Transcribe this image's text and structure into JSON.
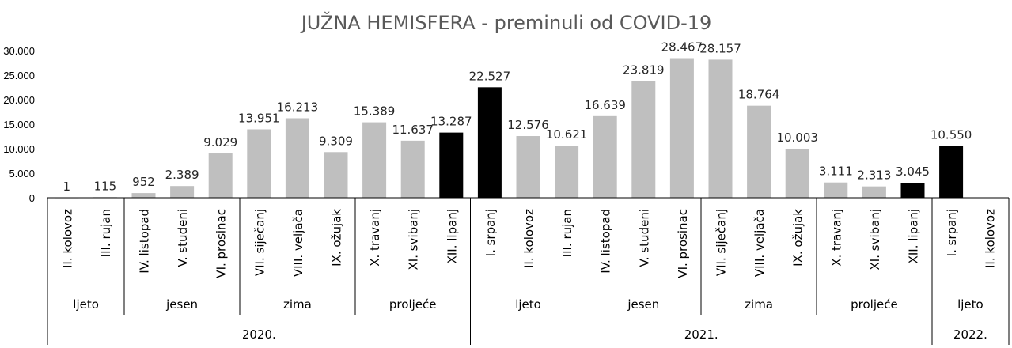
{
  "chart_data": {
    "type": "bar",
    "title": "JUŽNA HEMISFERA - preminuli od COVID-19",
    "ylim": [
      0,
      30000
    ],
    "y_ticks": [
      {
        "value": 0,
        "label": "0"
      },
      {
        "value": 5000,
        "label": "5.000"
      },
      {
        "value": 10000,
        "label": "10.000"
      },
      {
        "value": 15000,
        "label": "15.000"
      },
      {
        "value": 20000,
        "label": "20.000"
      },
      {
        "value": 25000,
        "label": "25.000"
      },
      {
        "value": 30000,
        "label": "30.000"
      }
    ],
    "grid": false,
    "categories": [
      "II. kolovoz",
      "III. rujan",
      "IV. listopad",
      "V. studeni",
      "VI. prosinac",
      "VII. siječanj",
      "VIII. veljača",
      "IX. ožujak",
      "X. travanj",
      "XI. svibanj",
      "XII. lipanj",
      "I. srpanj",
      "II. kolovoz",
      "III. rujan",
      "IV. listopad",
      "V. studeni",
      "VI. prosinac",
      "VII. siječanj",
      "VIII. veljača",
      "IX. ožujak",
      "X. travanj",
      "XI. svibanj",
      "XII. lipanj",
      "I. srpanj",
      "II. kolovoz"
    ],
    "values": [
      1,
      115,
      952,
      2389,
      9029,
      13951,
      16213,
      9309,
      15389,
      11637,
      13287,
      22527,
      12576,
      10621,
      16639,
      23819,
      28467,
      28157,
      18764,
      10003,
      3111,
      2313,
      3045,
      10550,
      null
    ],
    "data_labels": [
      "1",
      "115",
      "952",
      "2.389",
      "9.029",
      "13.951",
      "16.213",
      "9.309",
      "15.389",
      "11.637",
      "13.287",
      "22.527",
      "12.576",
      "10.621",
      "16.639",
      "23.819",
      "28.467",
      "28.157",
      "18.764",
      "10.003",
      "3.111",
      "2.313",
      "3.045",
      "10.550",
      ""
    ],
    "highlighted": [
      10,
      11,
      22,
      23
    ],
    "colors": {
      "bar": "#bfbfbf",
      "highlight": "#000000",
      "axis": "#000000",
      "title": "#595959"
    },
    "seasons": [
      {
        "label": "ljeto",
        "start": 0,
        "end": 1
      },
      {
        "label": "jesen",
        "start": 2,
        "end": 4
      },
      {
        "label": "zima",
        "start": 5,
        "end": 7
      },
      {
        "label": "proljeće",
        "start": 8,
        "end": 10
      },
      {
        "label": "ljeto",
        "start": 11,
        "end": 13
      },
      {
        "label": "jesen",
        "start": 14,
        "end": 16
      },
      {
        "label": "zima",
        "start": 17,
        "end": 19
      },
      {
        "label": "proljeće",
        "start": 20,
        "end": 22
      },
      {
        "label": "ljeto",
        "start": 23,
        "end": 24
      }
    ],
    "years": [
      {
        "label": "2020.",
        "start": 0,
        "end": 10
      },
      {
        "label": "2021.",
        "start": 11,
        "end": 22
      },
      {
        "label": "2022.",
        "start": 23,
        "end": 24
      }
    ]
  }
}
